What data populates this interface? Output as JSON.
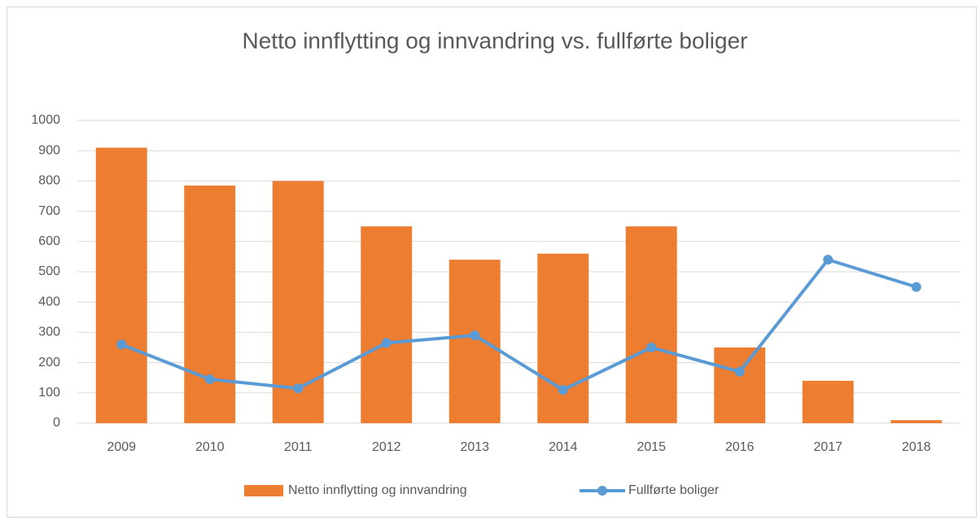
{
  "chart_data": {
    "type": "bar",
    "title": "Netto innflytting og innvandring vs. fullførte boliger",
    "categories": [
      "2009",
      "2010",
      "2011",
      "2012",
      "2013",
      "2014",
      "2015",
      "2016",
      "2017",
      "2018"
    ],
    "series": [
      {
        "name": "Netto innflytting og innvandring",
        "type": "bar",
        "color": "#ed7d31",
        "values": [
          910,
          785,
          800,
          650,
          540,
          560,
          650,
          250,
          140,
          10
        ]
      },
      {
        "name": "Fullførte boliger",
        "type": "line",
        "color": "#5b9bd5",
        "values": [
          260,
          145,
          115,
          265,
          290,
          110,
          250,
          170,
          540,
          450
        ]
      }
    ],
    "ylim": [
      0,
      1000
    ],
    "yticks": [
      0,
      100,
      200,
      300,
      400,
      500,
      600,
      700,
      800,
      900,
      1000
    ],
    "grid": true,
    "legend": "bottom"
  }
}
